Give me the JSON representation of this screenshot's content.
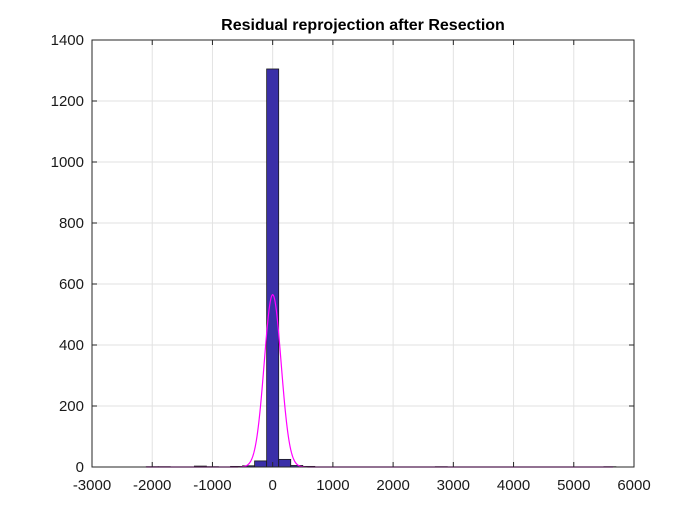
{
  "chart_data": {
    "type": "bar",
    "title": "Residual reprojection after Resection",
    "xlabel": "",
    "ylabel": "",
    "xlim": [
      -3000,
      6000
    ],
    "ylim": [
      0,
      1400
    ],
    "xticks": [
      -3000,
      -2000,
      -1000,
      0,
      1000,
      2000,
      3000,
      4000,
      5000,
      6000
    ],
    "yticks": [
      0,
      200,
      400,
      600,
      800,
      1000,
      1200,
      1400
    ],
    "grid": true,
    "bin_width": 200,
    "bins": [
      {
        "x0": -2100,
        "x1": -1900,
        "count": 1
      },
      {
        "x0": -1900,
        "x1": -1700,
        "count": 1
      },
      {
        "x0": -1300,
        "x1": -1100,
        "count": 3
      },
      {
        "x0": -1100,
        "x1": -900,
        "count": 1
      },
      {
        "x0": -700,
        "x1": -500,
        "count": 2
      },
      {
        "x0": -500,
        "x1": -300,
        "count": 4
      },
      {
        "x0": -300,
        "x1": -100,
        "count": 20
      },
      {
        "x0": -100,
        "x1": 100,
        "count": 1305
      },
      {
        "x0": 100,
        "x1": 300,
        "count": 25
      },
      {
        "x0": 300,
        "x1": 500,
        "count": 5
      },
      {
        "x0": 500,
        "x1": 700,
        "count": 2
      },
      {
        "x0": 2700,
        "x1": 2900,
        "count": 1
      },
      {
        "x0": 5500,
        "x1": 5700,
        "count": 1
      }
    ],
    "fit_curve": {
      "type": "gaussian",
      "mean": 0,
      "peak": 565,
      "sigma": 140,
      "x_range": [
        -2100,
        5650
      ]
    },
    "colors": {
      "bar_fill": "#3a2fa8",
      "bar_edge": "#1a1a1a",
      "curve": "#ff00ff",
      "grid": "#e2e2e2",
      "axis": "#262626"
    }
  }
}
